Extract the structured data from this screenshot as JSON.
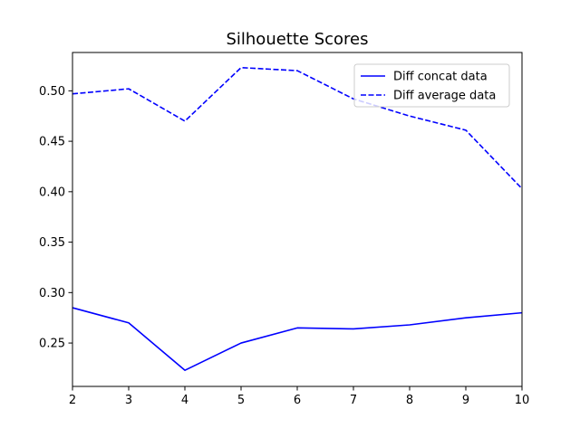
{
  "chart_data": {
    "type": "line",
    "title": "Silhouette Scores",
    "xlabel": "",
    "ylabel": "",
    "x": [
      2,
      3,
      4,
      5,
      6,
      7,
      8,
      9,
      10
    ],
    "xlim": [
      2,
      10
    ],
    "ylim": [
      0.207,
      0.538
    ],
    "xticks": [
      "2",
      "3",
      "4",
      "5",
      "6",
      "7",
      "8",
      "9",
      "10"
    ],
    "yticks": [
      "0.25",
      "0.30",
      "0.35",
      "0.40",
      "0.45",
      "0.50"
    ],
    "grid": false,
    "legend_position": "top-right",
    "series": [
      {
        "name": "Diff concat data",
        "style": "solid",
        "color": "#0000ff",
        "values": [
          0.285,
          0.27,
          0.223,
          0.25,
          0.265,
          0.264,
          0.268,
          0.275,
          0.28
        ]
      },
      {
        "name": "Diff average data",
        "style": "dashed",
        "color": "#0000ff",
        "values": [
          0.497,
          0.502,
          0.47,
          0.523,
          0.52,
          0.492,
          0.475,
          0.461,
          0.403
        ]
      }
    ]
  }
}
